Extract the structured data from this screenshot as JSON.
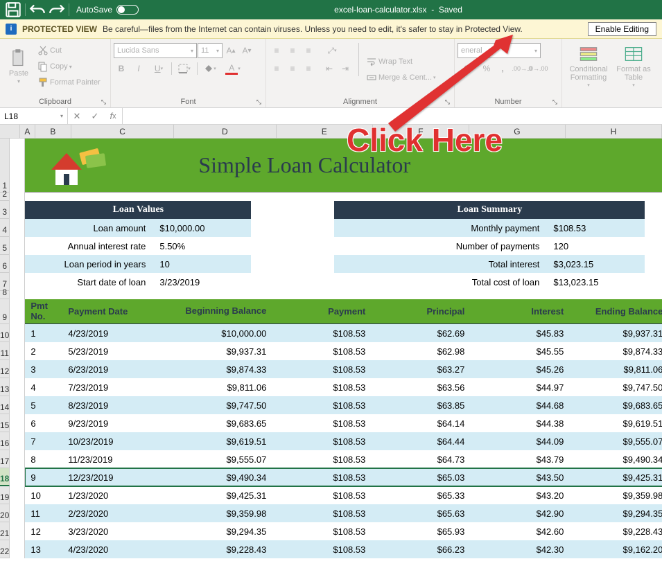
{
  "titlebar": {
    "autosave_label": "AutoSave",
    "autosave_state": "Off",
    "filename": "excel-loan-calculator.xlsx",
    "status": "Saved"
  },
  "protected": {
    "label": "PROTECTED VIEW",
    "message": "Be careful—files from the Internet can contain viruses. Unless you need to edit, it's safer to stay in Protected View.",
    "button": "Enable Editing"
  },
  "ribbon": {
    "clipboard": {
      "paste": "Paste",
      "cut": "Cut",
      "copy": "Copy",
      "painter": "Format Painter",
      "label": "Clipboard"
    },
    "font": {
      "name": "Lucida Sans",
      "size": "11",
      "label": "Font"
    },
    "alignment": {
      "wrap": "Wrap Text",
      "merge": "Merge & Cent...",
      "label": "Alignment"
    },
    "number": {
      "format": "eneral",
      "label": "Number"
    },
    "styles": {
      "cond": "Conditional Formatting",
      "table": "Format as Table",
      "label": ""
    }
  },
  "namebox": "L18",
  "columns": [
    "A",
    "B",
    "C",
    "D",
    "E",
    "F",
    "G",
    "H"
  ],
  "row_nums": [
    1,
    2,
    3,
    4,
    5,
    6,
    7,
    8,
    9,
    10,
    11,
    12,
    13,
    14,
    15,
    16,
    17,
    18,
    19,
    20,
    21,
    22
  ],
  "banner_title": "Simple Loan Calculator",
  "loan_values": {
    "header": "Loan Values",
    "rows": [
      {
        "label": "Loan amount",
        "value": "$10,000.00"
      },
      {
        "label": "Annual interest rate",
        "value": "5.50%"
      },
      {
        "label": "Loan period in years",
        "value": "10"
      },
      {
        "label": "Start date of loan",
        "value": "3/23/2019"
      }
    ]
  },
  "loan_summary": {
    "header": "Loan Summary",
    "rows": [
      {
        "label": "Monthly payment",
        "value": "$108.53"
      },
      {
        "label": "Number of payments",
        "value": "120"
      },
      {
        "label": "Total interest",
        "value": "$3,023.15"
      },
      {
        "label": "Total cost of loan",
        "value": "$13,023.15"
      }
    ]
  },
  "pay_headers": {
    "pmt": "Pmt No.",
    "date": "Payment Date",
    "beg": "Beginning Balance",
    "pay": "Payment",
    "prin": "Principal",
    "int": "Interest",
    "end": "Ending Balance"
  },
  "payments": [
    {
      "n": "1",
      "date": "4/23/2019",
      "beg": "$10,000.00",
      "pay": "$108.53",
      "prin": "$62.69",
      "int": "$45.83",
      "end": "$9,937.31"
    },
    {
      "n": "2",
      "date": "5/23/2019",
      "beg": "$9,937.31",
      "pay": "$108.53",
      "prin": "$62.98",
      "int": "$45.55",
      "end": "$9,874.33"
    },
    {
      "n": "3",
      "date": "6/23/2019",
      "beg": "$9,874.33",
      "pay": "$108.53",
      "prin": "$63.27",
      "int": "$45.26",
      "end": "$9,811.06"
    },
    {
      "n": "4",
      "date": "7/23/2019",
      "beg": "$9,811.06",
      "pay": "$108.53",
      "prin": "$63.56",
      "int": "$44.97",
      "end": "$9,747.50"
    },
    {
      "n": "5",
      "date": "8/23/2019",
      "beg": "$9,747.50",
      "pay": "$108.53",
      "prin": "$63.85",
      "int": "$44.68",
      "end": "$9,683.65"
    },
    {
      "n": "6",
      "date": "9/23/2019",
      "beg": "$9,683.65",
      "pay": "$108.53",
      "prin": "$64.14",
      "int": "$44.38",
      "end": "$9,619.51"
    },
    {
      "n": "7",
      "date": "10/23/2019",
      "beg": "$9,619.51",
      "pay": "$108.53",
      "prin": "$64.44",
      "int": "$44.09",
      "end": "$9,555.07"
    },
    {
      "n": "8",
      "date": "11/23/2019",
      "beg": "$9,555.07",
      "pay": "$108.53",
      "prin": "$64.73",
      "int": "$43.79",
      "end": "$9,490.34"
    },
    {
      "n": "9",
      "date": "12/23/2019",
      "beg": "$9,490.34",
      "pay": "$108.53",
      "prin": "$65.03",
      "int": "$43.50",
      "end": "$9,425.31"
    },
    {
      "n": "10",
      "date": "1/23/2020",
      "beg": "$9,425.31",
      "pay": "$108.53",
      "prin": "$65.33",
      "int": "$43.20",
      "end": "$9,359.98"
    },
    {
      "n": "11",
      "date": "2/23/2020",
      "beg": "$9,359.98",
      "pay": "$108.53",
      "prin": "$65.63",
      "int": "$42.90",
      "end": "$9,294.35"
    },
    {
      "n": "12",
      "date": "3/23/2020",
      "beg": "$9,294.35",
      "pay": "$108.53",
      "prin": "$65.93",
      "int": "$42.60",
      "end": "$9,228.43"
    },
    {
      "n": "13",
      "date": "4/23/2020",
      "beg": "$9,228.43",
      "pay": "$108.53",
      "prin": "$66.23",
      "int": "$42.30",
      "end": "$9,162.20"
    }
  ],
  "annotation": "Click Here",
  "colors": {
    "banner_green": "#5ea82c",
    "header_navy": "#2a3b4d",
    "row_blue": "#d4ecf5",
    "excel_green": "#217346",
    "protected_yellow": "#fdf6d4",
    "arrow_red": "#e03030"
  }
}
